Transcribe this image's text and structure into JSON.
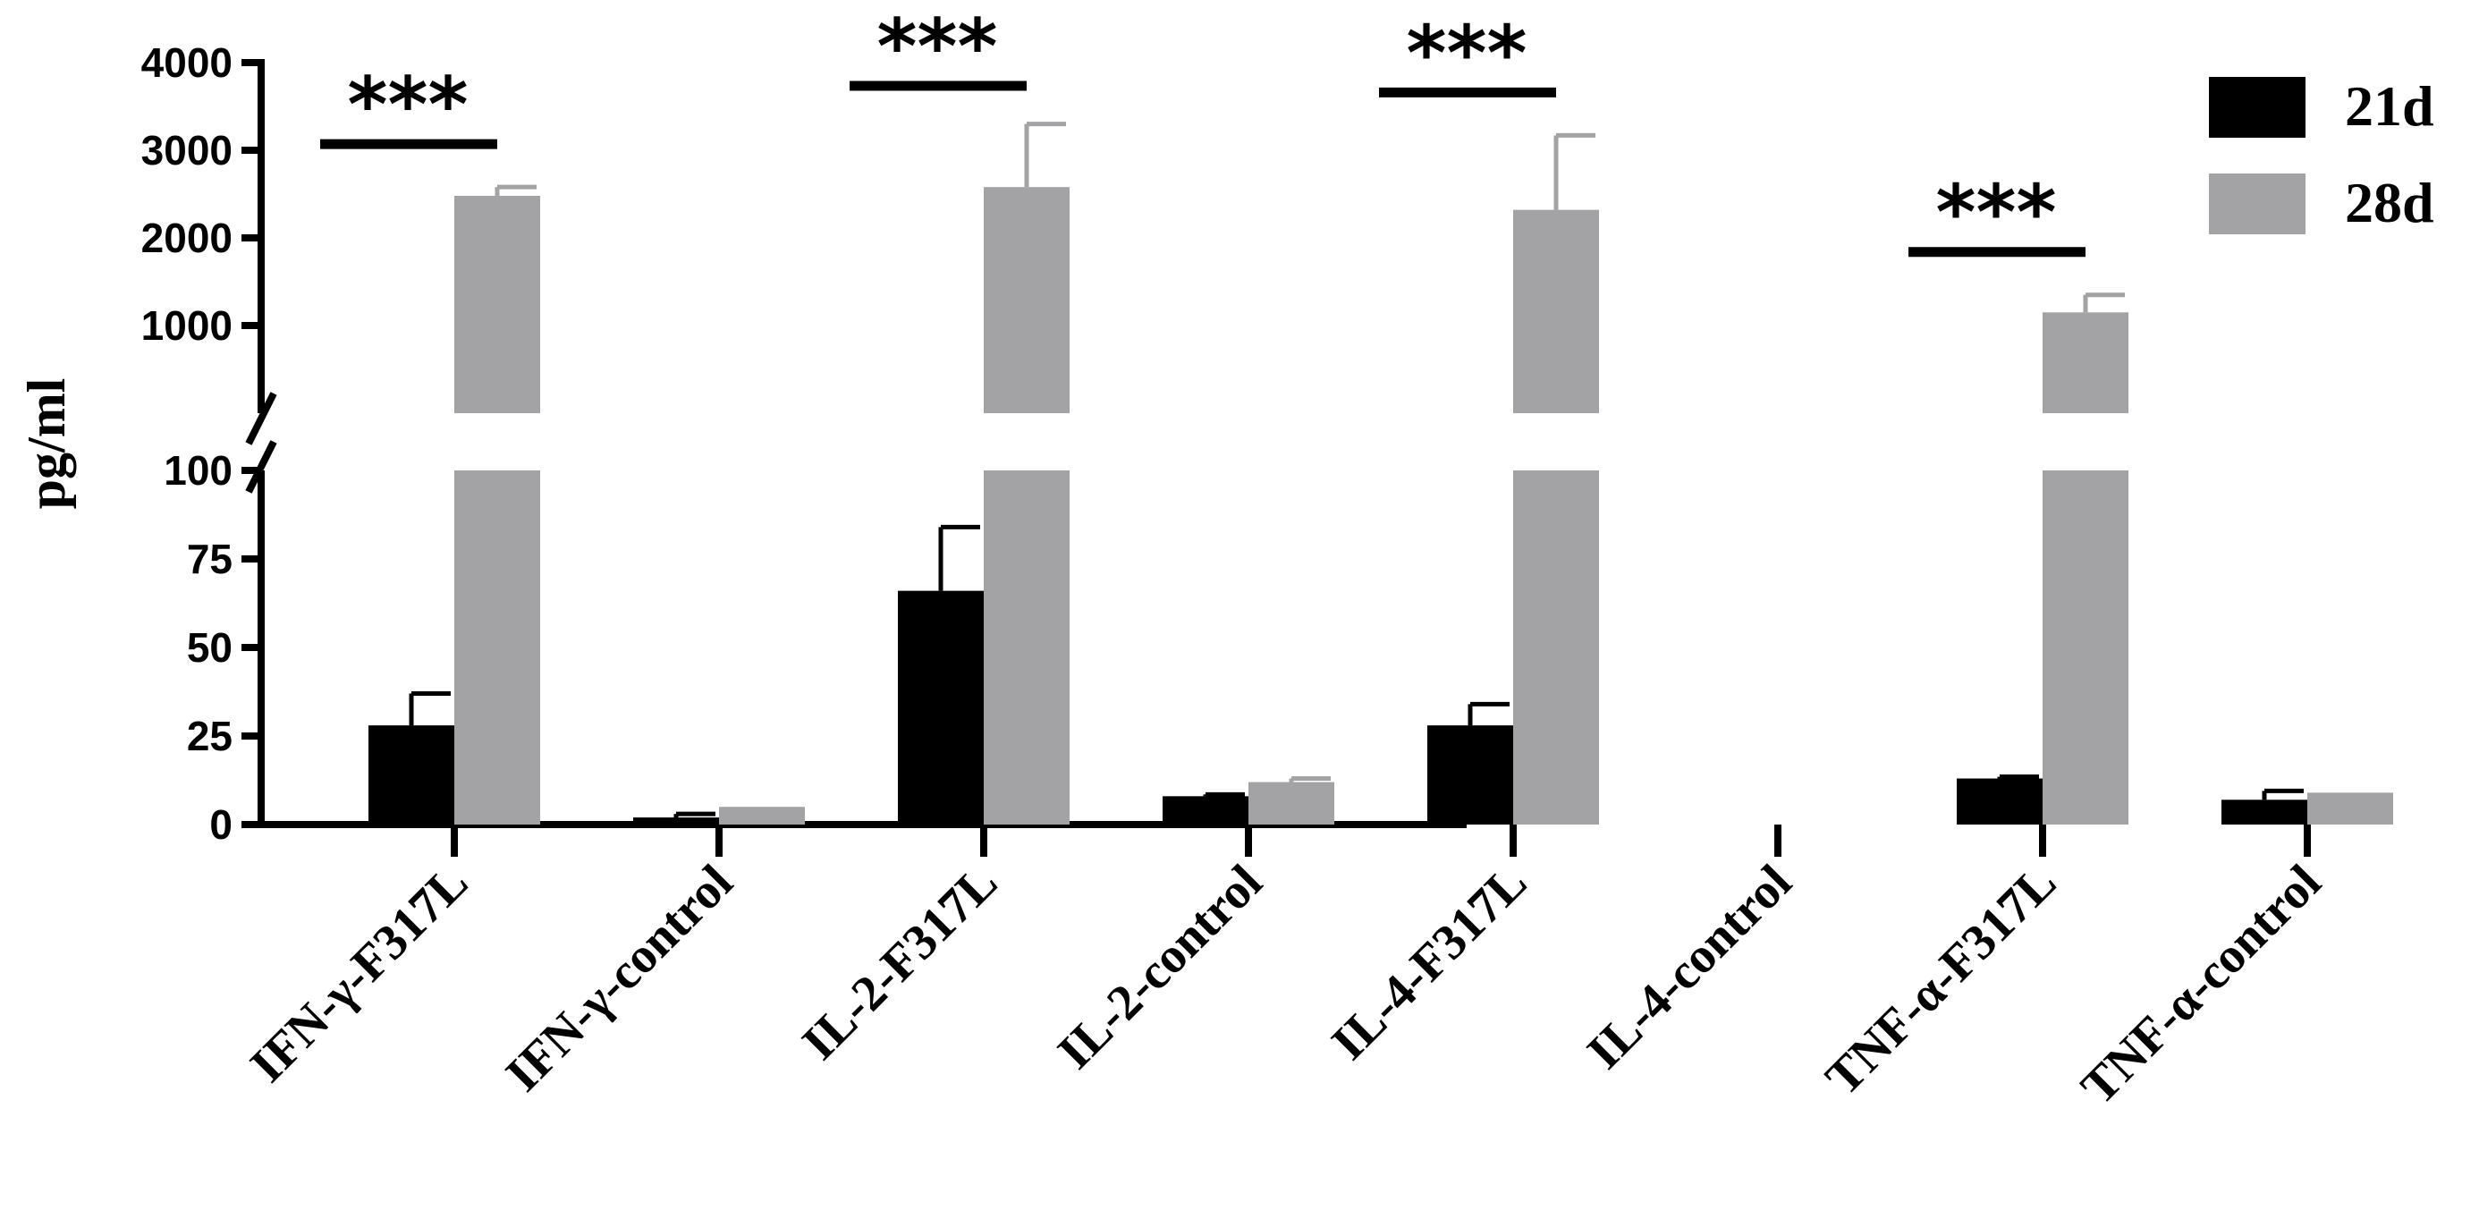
{
  "chart_data": {
    "type": "bar",
    "title": "",
    "xlabel": "",
    "ylabel": "pg/ml",
    "categories": [
      "IFN-γ-F317L",
      "IFN-γ-control",
      "IL-2-F317L",
      "IL-2-control",
      "IL-4-F317L",
      "IL-4-control",
      "TNF-α-F317L",
      "TNF-α-control"
    ],
    "series": [
      {
        "name": "21d",
        "color": "#000000",
        "values": [
          28,
          2,
          66,
          8,
          28,
          0,
          13,
          7
        ],
        "errors": [
          9,
          1,
          18,
          0.5,
          6,
          0,
          0.5,
          2.5
        ]
      },
      {
        "name": "28d",
        "color": "#a3a3a5",
        "values": [
          2480,
          5,
          2580,
          12,
          2320,
          0,
          1150,
          9
        ],
        "errors": [
          100,
          0,
          720,
          1,
          850,
          0,
          200,
          0
        ]
      }
    ],
    "y_axis": {
      "broken": true,
      "lower_segment": {
        "range": [
          0,
          100
        ],
        "ticks": [
          0,
          25,
          50,
          75,
          100
        ],
        "tick_labels": [
          "0",
          "25",
          "50",
          "75",
          "100"
        ]
      },
      "upper_segment": {
        "range": [
          0,
          4000
        ],
        "ticks": [
          1000,
          2000,
          3000,
          4000
        ],
        "tick_labels": [
          "1000",
          "2000",
          "3000",
          "4000"
        ]
      }
    },
    "significance": [
      {
        "category_index": 0,
        "label": "***"
      },
      {
        "category_index": 2,
        "label": "***"
      },
      {
        "category_index": 4,
        "label": "***"
      },
      {
        "category_index": 6,
        "label": "***"
      }
    ],
    "legend": {
      "placement": "top-right",
      "entries": [
        "21d",
        "28d"
      ]
    },
    "grid": false
  }
}
